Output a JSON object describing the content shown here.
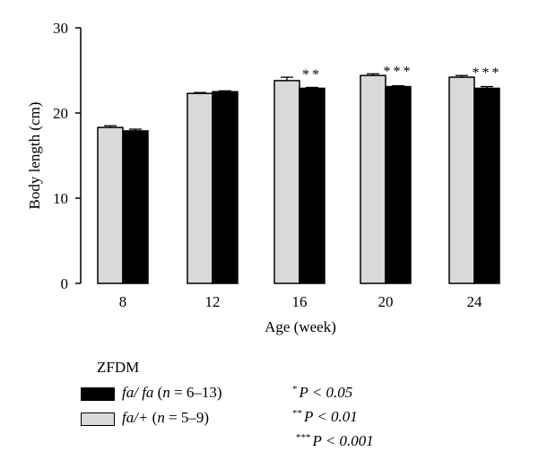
{
  "chart_data": {
    "type": "bar",
    "xlabel": "Age (week)",
    "ylabel": "Body length (cm)",
    "ylim": [
      0,
      30
    ],
    "yticks": [
      0,
      10,
      20,
      30
    ],
    "categories": [
      "8",
      "12",
      "16",
      "20",
      "24"
    ],
    "series": [
      {
        "name": "fa/+",
        "color": "#d9d9d9",
        "values": [
          18.3,
          22.3,
          23.8,
          24.4,
          24.2
        ],
        "errors": [
          0.2,
          0.1,
          0.4,
          0.2,
          0.2
        ]
      },
      {
        "name": "fa/fa",
        "color": "#000000",
        "values": [
          17.9,
          22.5,
          22.9,
          23.1,
          22.9
        ],
        "errors": [
          0.2,
          0.1,
          0.1,
          0.1,
          0.2
        ]
      }
    ],
    "significance": [
      "",
      "",
      "**",
      "***",
      "***"
    ]
  },
  "legend": {
    "title": "ZFDM",
    "items": [
      {
        "genotype": "fa/ fa",
        "n_label": "n",
        "n_range": " = 6–13)",
        "color": "#000000"
      },
      {
        "genotype": "fa/+",
        "n_label": "n",
        "n_range": " = 5–9)",
        "color": "#d9d9d9"
      }
    ]
  },
  "significance_key": [
    {
      "stars": "*",
      "text": "P < 0.05"
    },
    {
      "stars": "**",
      "text": "P < 0.01"
    },
    {
      "stars": "***",
      "text": "P < 0.001"
    }
  ]
}
